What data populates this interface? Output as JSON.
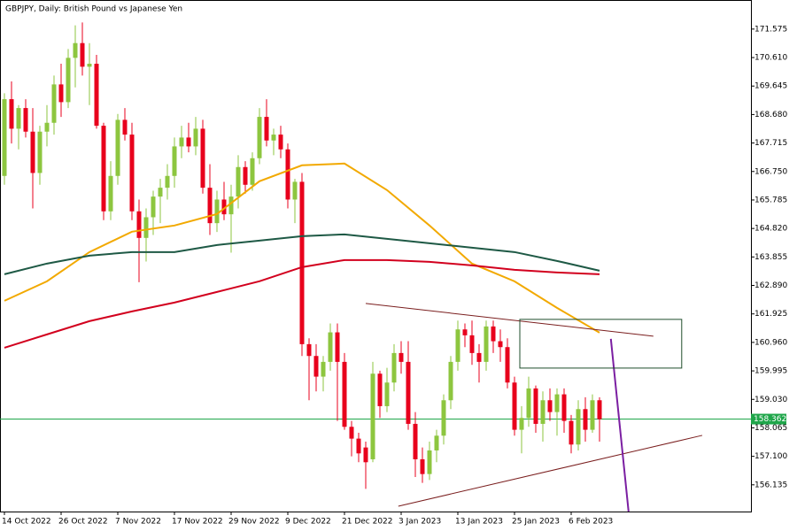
{
  "chart_data": {
    "type": "candlestick",
    "title": "GBPJPY, Daily:  British Pound vs Japanese Yen",
    "categories": [
      "14 Oct 2022",
      null,
      null,
      null,
      null,
      null,
      null,
      null,
      "26 Oct 2022",
      null,
      null,
      null,
      null,
      null,
      null,
      null,
      "7 Nov 2022",
      null,
      null,
      null,
      null,
      null,
      null,
      null,
      "17 Nov 2022",
      null,
      null,
      null,
      null,
      null,
      null,
      null,
      "29 Nov 2022",
      null,
      null,
      null,
      null,
      null,
      null,
      null,
      "9 Dec 2022",
      null,
      null,
      null,
      null,
      null,
      null,
      null,
      "21 Dec 2022",
      null,
      null,
      null,
      null,
      null,
      null,
      null,
      "3 Jan 2023",
      null,
      null,
      null,
      null,
      null,
      null,
      null,
      "13 Jan 2023",
      null,
      null,
      null,
      null,
      null,
      null,
      null,
      "25 Jan 2023",
      null,
      null,
      null,
      null,
      null,
      null,
      null,
      "6 Feb 2023",
      null,
      null,
      null,
      null
    ],
    "open": [
      166.6,
      169.2,
      168.2,
      168.9,
      168.1,
      166.7,
      168.1,
      168.4,
      169.7,
      169.1,
      170.6,
      171.1,
      170.3,
      170.4,
      168.3,
      165.4,
      166.6,
      168.5,
      168.0,
      165.4,
      164.5,
      165.2,
      165.9,
      166.2,
      166.6,
      167.6,
      167.9,
      167.6,
      168.2,
      166.2,
      165.0,
      165.8,
      165.3,
      165.9,
      166.9,
      166.3,
      167.2,
      168.6,
      167.8,
      168.0,
      167.5,
      165.8,
      166.4,
      160.9,
      160.5,
      159.8,
      160.3,
      161.3,
      160.3,
      158.1,
      157.7,
      157.4,
      157.0,
      159.9,
      158.8,
      159.6,
      160.6,
      160.3,
      158.2,
      157.0,
      156.5,
      157.3,
      157.8,
      159.0,
      160.3,
      161.4,
      161.2,
      160.6,
      160.3,
      161.5,
      161.0,
      160.8,
      159.6,
      158.0,
      158.4,
      159.4,
      158.2,
      159.0,
      158.6,
      159.2,
      158.3,
      157.5,
      158.7,
      158.0,
      159.0
    ],
    "high": [
      169.4,
      169.8,
      169.0,
      169.2,
      168.9,
      168.3,
      169.0,
      170.0,
      170.4,
      170.9,
      171.7,
      171.8,
      171.1,
      170.7,
      168.4,
      167.1,
      168.7,
      168.9,
      168.4,
      165.8,
      165.5,
      166.1,
      166.5,
      167.0,
      167.9,
      168.3,
      168.4,
      168.6,
      168.5,
      167.0,
      166.1,
      166.4,
      166.3,
      167.3,
      167.1,
      167.4,
      168.9,
      169.2,
      168.2,
      168.3,
      167.7,
      166.5,
      166.7,
      161.1,
      160.9,
      160.5,
      161.6,
      161.6,
      160.6,
      158.3,
      157.9,
      157.6,
      160.3,
      160.0,
      160.1,
      160.9,
      161.0,
      161.0,
      158.6,
      157.4,
      157.6,
      158.0,
      159.2,
      160.5,
      161.7,
      161.6,
      161.7,
      160.9,
      161.7,
      161.7,
      161.4,
      161.1,
      159.8,
      158.8,
      159.8,
      159.5,
      159.3,
      159.4,
      159.4,
      159.4,
      158.5,
      159.0,
      159.1,
      159.2,
      159.1
    ],
    "low": [
      166.3,
      167.7,
      167.5,
      167.9,
      165.5,
      166.3,
      167.6,
      168.0,
      168.6,
      168.9,
      169.6,
      170.0,
      169.0,
      168.2,
      165.1,
      165.1,
      166.3,
      167.8,
      165.1,
      163.0,
      163.7,
      164.6,
      165.0,
      165.8,
      166.2,
      167.2,
      167.4,
      167.3,
      166.0,
      164.6,
      164.7,
      165.1,
      164.0,
      165.5,
      166.0,
      166.1,
      167.0,
      167.6,
      167.3,
      167.2,
      165.5,
      165.0,
      160.5,
      159.0,
      159.3,
      159.3,
      160.0,
      158.3,
      158.0,
      157.1,
      156.9,
      156.0,
      156.9,
      158.4,
      158.6,
      159.3,
      159.9,
      158.0,
      156.4,
      156.2,
      156.3,
      156.9,
      157.5,
      158.7,
      160.0,
      160.8,
      160.2,
      159.6,
      160.0,
      160.6,
      160.3,
      159.4,
      157.8,
      157.2,
      158.1,
      157.9,
      157.6,
      158.3,
      157.8,
      157.9,
      157.2,
      157.3,
      157.6,
      157.9,
      157.6
    ],
    "close": [
      169.2,
      168.2,
      168.9,
      168.1,
      166.7,
      168.1,
      168.4,
      169.7,
      169.1,
      170.6,
      171.1,
      170.3,
      170.4,
      168.3,
      165.4,
      166.6,
      168.5,
      168.0,
      165.4,
      164.5,
      165.2,
      165.9,
      166.2,
      166.6,
      167.6,
      167.9,
      167.6,
      168.2,
      166.2,
      165.0,
      165.8,
      165.3,
      165.9,
      166.9,
      166.3,
      167.2,
      168.6,
      167.8,
      168.0,
      167.5,
      165.8,
      166.4,
      160.9,
      160.5,
      159.8,
      160.3,
      161.3,
      160.3,
      158.1,
      157.7,
      157.2,
      156.9,
      159.9,
      158.8,
      159.6,
      160.6,
      160.3,
      158.2,
      157.0,
      156.5,
      157.3,
      157.8,
      159.0,
      160.3,
      161.4,
      161.2,
      160.6,
      160.3,
      161.5,
      161.0,
      160.8,
      159.6,
      158.0,
      158.4,
      159.4,
      158.2,
      159.0,
      158.6,
      159.2,
      158.3,
      157.5,
      158.7,
      158.0,
      159.0,
      158.36
    ],
    "up_color": "#8dc63f",
    "down_color": "#e8001c",
    "overlays": [
      {
        "color": "#f2a900",
        "x": [
          0,
          6,
          12,
          18,
          24,
          30,
          36,
          42,
          48,
          54,
          60,
          66,
          72,
          78,
          84
        ],
        "values": [
          162.37,
          163.03,
          164.02,
          164.71,
          164.92,
          165.31,
          166.42,
          166.96,
          167.02,
          166.12,
          164.92,
          163.63,
          163.03,
          162.13,
          161.29
        ]
      },
      {
        "color": "#1e5945",
        "x": [
          0,
          6,
          12,
          18,
          24,
          30,
          36,
          42,
          48,
          54,
          60,
          66,
          72,
          78,
          84
        ],
        "values": [
          163.27,
          163.63,
          163.9,
          164.02,
          164.02,
          164.26,
          164.41,
          164.56,
          164.62,
          164.47,
          164.32,
          164.17,
          164.02,
          163.72,
          163.39
        ]
      },
      {
        "color": "#d2001e",
        "x": [
          0,
          6,
          12,
          18,
          24,
          30,
          36,
          42,
          48,
          54,
          60,
          66,
          72,
          78,
          84
        ],
        "values": [
          160.78,
          161.23,
          161.68,
          162.01,
          162.31,
          162.67,
          163.03,
          163.51,
          163.75,
          163.75,
          163.69,
          163.57,
          163.42,
          163.33,
          163.27
        ]
      }
    ],
    "trendlines": [
      {
        "color": "#7a1e1e",
        "x": [
          51,
          91.6
        ],
        "values": [
          162.28,
          161.17
        ]
      },
      {
        "color": "#7a1e1e",
        "x": [
          55.6,
          98.5
        ],
        "values": [
          155.41,
          157.81
        ]
      },
      {
        "color": "#7b1fa2",
        "x": [
          85.6,
          88.1
        ],
        "values": [
          161.08,
          155.23
        ]
      }
    ],
    "box": {
      "x": [
        72.75,
        95.6
      ],
      "values": [
        161.74,
        160.09
      ]
    },
    "last_price": 158.362,
    "last_price_color": "#1fa64a",
    "ylim": [
      155.23,
      172.56
    ],
    "yticks": [
      171.575,
      {
        "value": 170.61,
        "label": "170.610"
      },
      169.645,
      {
        "value": 168.68,
        "label": "168.680"
      },
      167.715,
      {
        "value": 166.75,
        "label": "166.750"
      },
      165.785,
      {
        "value": 164.82,
        "label": "164.820"
      },
      163.855,
      {
        "value": 162.89,
        "label": "162.890"
      },
      161.925,
      {
        "value": 160.96,
        "label": "160.960"
      },
      159.995,
      {
        "value": 159.03,
        "label": "159.030"
      },
      158.065,
      {
        "value": 157.1,
        "label": "157.100"
      },
      156.135
    ]
  }
}
